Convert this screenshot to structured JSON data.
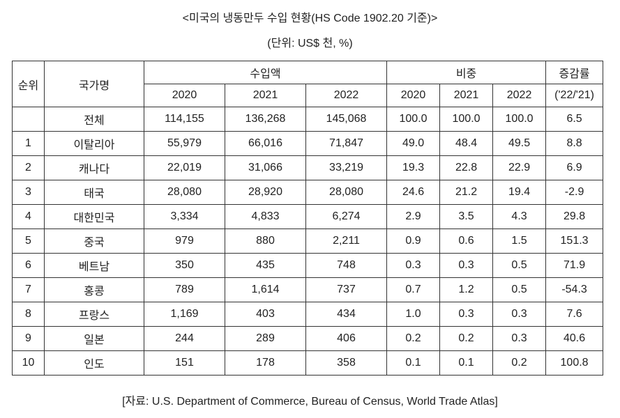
{
  "title": "<미국의 냉동만두 수입 현황(HS Code 1902.20 기준)>",
  "unit": "(단위: US$ 천, %)",
  "header": {
    "rank": "순위",
    "country": "국가명",
    "import_amount": "수입액",
    "share": "비중",
    "growth": "증감률",
    "growth_sub": "('22/'21)",
    "years": [
      "2020",
      "2021",
      "2022"
    ]
  },
  "rows": [
    {
      "rank": "",
      "country": "전체",
      "a2020": "114,155",
      "a2021": "136,268",
      "a2022": "145,068",
      "s2020": "100.0",
      "s2021": "100.0",
      "s2022": "100.0",
      "growth": "6.5"
    },
    {
      "rank": "1",
      "country": "이탈리아",
      "a2020": "55,979",
      "a2021": "66,016",
      "a2022": "71,847",
      "s2020": "49.0",
      "s2021": "48.4",
      "s2022": "49.5",
      "growth": "8.8"
    },
    {
      "rank": "2",
      "country": "캐나다",
      "a2020": "22,019",
      "a2021": "31,066",
      "a2022": "33,219",
      "s2020": "19.3",
      "s2021": "22.8",
      "s2022": "22.9",
      "growth": "6.9"
    },
    {
      "rank": "3",
      "country": "태국",
      "a2020": "28,080",
      "a2021": "28,920",
      "a2022": "28,080",
      "s2020": "24.6",
      "s2021": "21.2",
      "s2022": "19.4",
      "growth": "-2.9"
    },
    {
      "rank": "4",
      "country": "대한민국",
      "a2020": "3,334",
      "a2021": "4,833",
      "a2022": "6,274",
      "s2020": "2.9",
      "s2021": "3.5",
      "s2022": "4.3",
      "growth": "29.8"
    },
    {
      "rank": "5",
      "country": "중국",
      "a2020": "979",
      "a2021": "880",
      "a2022": "2,211",
      "s2020": "0.9",
      "s2021": "0.6",
      "s2022": "1.5",
      "growth": "151.3"
    },
    {
      "rank": "6",
      "country": "베트남",
      "a2020": "350",
      "a2021": "435",
      "a2022": "748",
      "s2020": "0.3",
      "s2021": "0.3",
      "s2022": "0.5",
      "growth": "71.9"
    },
    {
      "rank": "7",
      "country": "홍콩",
      "a2020": "789",
      "a2021": "1,614",
      "a2022": "737",
      "s2020": "0.7",
      "s2021": "1.2",
      "s2022": "0.5",
      "growth": "-54.3"
    },
    {
      "rank": "8",
      "country": "프랑스",
      "a2020": "1,169",
      "a2021": "403",
      "a2022": "434",
      "s2020": "1.0",
      "s2021": "0.3",
      "s2022": "0.3",
      "growth": "7.6"
    },
    {
      "rank": "9",
      "country": "일본",
      "a2020": "244",
      "a2021": "289",
      "a2022": "406",
      "s2020": "0.2",
      "s2021": "0.2",
      "s2022": "0.3",
      "growth": "40.6"
    },
    {
      "rank": "10",
      "country": "인도",
      "a2020": "151",
      "a2021": "178",
      "a2022": "358",
      "s2020": "0.1",
      "s2021": "0.1",
      "s2022": "0.2",
      "growth": "100.8"
    }
  ],
  "source": "[자료: U.S. Department of Commerce, Bureau of Census, World Trade Atlas]"
}
